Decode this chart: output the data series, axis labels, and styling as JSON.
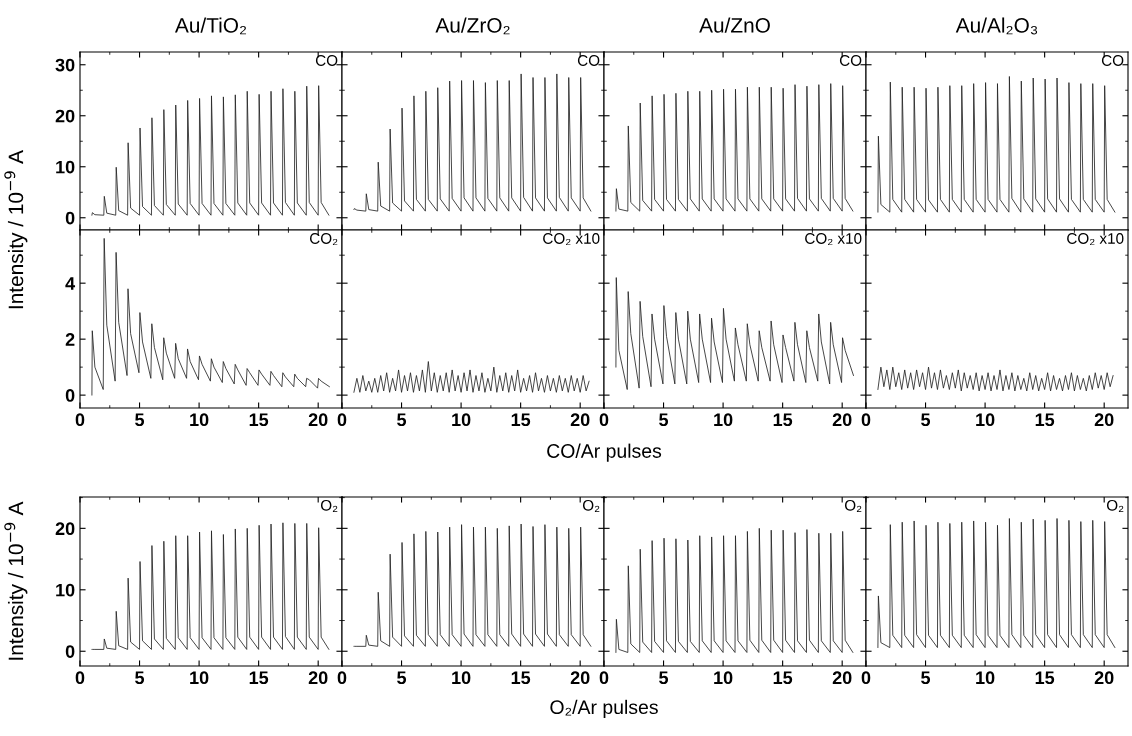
{
  "chart_data": [
    {
      "type": "line",
      "title": "Au/TiO₂",
      "annotations": [
        "CO"
      ],
      "tick_labels": "y",
      "xlim": [
        0,
        22
      ],
      "xticks": [
        0,
        5,
        10,
        15,
        20
      ],
      "ylim": [
        -2.4,
        32.5
      ],
      "yticks": [
        0,
        10,
        20,
        30
      ],
      "x": [
        1,
        1.04,
        1.25,
        2,
        2.04,
        2.25,
        3,
        3.04,
        3.25,
        4,
        4.04,
        4.25,
        5,
        5.04,
        5.25,
        6,
        6.04,
        6.25,
        7,
        7.04,
        7.25,
        8,
        8.04,
        8.25,
        9,
        9.04,
        9.25,
        10,
        10.04,
        10.25,
        11,
        11.04,
        11.25,
        12,
        12.04,
        12.25,
        13,
        13.04,
        13.25,
        14,
        14.04,
        14.25,
        15,
        15.04,
        15.25,
        16,
        16.04,
        16.25,
        17,
        17.04,
        17.25,
        18,
        18.04,
        18.25,
        19,
        19.04,
        19.25,
        20,
        20.04,
        20.25,
        20.9
      ],
      "series": [
        {
          "color": "#222222",
          "values": [
            0.5,
            1.0,
            0.6,
            0.5,
            4.2,
            0.9,
            0.5,
            9.9,
            1.4,
            0.5,
            14.7,
            1.9,
            0.5,
            17.6,
            2.2,
            0.5,
            19.6,
            2.4,
            0.5,
            21.2,
            2.6,
            0.5,
            22.1,
            2.7,
            0.5,
            23,
            2.8,
            0.5,
            23.4,
            2.8,
            0.5,
            23.9,
            2.8,
            0.5,
            23.7,
            2.8,
            0.5,
            24.1,
            2.9,
            0.5,
            24.8,
            2.9,
            0.5,
            24.2,
            2.9,
            0.5,
            24.8,
            2.9,
            0.5,
            25.3,
            3.0,
            0.5,
            24.8,
            2.9,
            0.5,
            25.8,
            3.0,
            0.5,
            25.9,
            3.0,
            0.5
          ]
        }
      ]
    },
    {
      "type": "line",
      "title": "Au/ZrO₂",
      "annotations": [
        "CO"
      ],
      "tick_labels": false,
      "xlim": [
        0,
        22
      ],
      "xticks": [
        0,
        5,
        10,
        15,
        20
      ],
      "ylim": [
        -2.4,
        32.5
      ],
      "yticks": [
        0,
        10,
        20,
        30
      ],
      "x": [
        1,
        1.04,
        1.25,
        2,
        2.04,
        2.25,
        3,
        3.04,
        3.25,
        4,
        4.04,
        4.25,
        5,
        5.04,
        5.25,
        6,
        6.04,
        6.25,
        7,
        7.04,
        7.25,
        8,
        8.04,
        8.25,
        9,
        9.04,
        9.25,
        10,
        10.04,
        10.25,
        11,
        11.04,
        11.25,
        12,
        12.04,
        12.25,
        13,
        13.04,
        13.25,
        14,
        14.04,
        14.25,
        15,
        15.04,
        15.25,
        16,
        16.04,
        16.25,
        17,
        17.04,
        17.25,
        18,
        18.04,
        18.25,
        19,
        19.04,
        19.25,
        20,
        20.04,
        20.25,
        20.9
      ],
      "series": [
        {
          "color": "#222222",
          "values": [
            1.6,
            1.8,
            1.5,
            1.3,
            4.7,
            1.6,
            1.3,
            10.9,
            2.3,
            1.3,
            17.4,
            2.9,
            1.3,
            21.5,
            3.3,
            1.3,
            23.9,
            3.6,
            1.3,
            24.8,
            3.6,
            1.3,
            25.5,
            3.7,
            1.3,
            26.8,
            3.8,
            1.3,
            26.9,
            3.9,
            1.3,
            26.9,
            3.9,
            1.3,
            26.5,
            3.8,
            1.3,
            26.9,
            3.9,
            1.3,
            26.9,
            3.9,
            1.3,
            28.2,
            4.0,
            1.3,
            27.5,
            3.9,
            1.3,
            27.5,
            3.9,
            1.3,
            28.2,
            4.0,
            1.3,
            27.5,
            3.9,
            1.3,
            27.5,
            3.9,
            1.3
          ]
        }
      ]
    },
    {
      "type": "line",
      "title": "Au/ZnO",
      "annotations": [
        "CO"
      ],
      "tick_labels": false,
      "xlim": [
        0,
        22
      ],
      "xticks": [
        0,
        5,
        10,
        15,
        20
      ],
      "ylim": [
        -2.4,
        32.5
      ],
      "yticks": [
        0,
        10,
        20,
        30
      ],
      "x": [
        1,
        1.04,
        1.25,
        2,
        2.04,
        2.25,
        3,
        3.04,
        3.25,
        4,
        4.04,
        4.25,
        5,
        5.04,
        5.25,
        6,
        6.04,
        6.25,
        7,
        7.04,
        7.25,
        8,
        8.04,
        8.25,
        9,
        9.04,
        9.25,
        10,
        10.04,
        10.25,
        11,
        11.04,
        11.25,
        12,
        12.04,
        12.25,
        13,
        13.04,
        13.25,
        14,
        14.04,
        14.25,
        15,
        15.04,
        15.25,
        16,
        16.04,
        16.25,
        17,
        17.04,
        17.25,
        18,
        18.04,
        18.25,
        19,
        19.04,
        19.25,
        20,
        20.04,
        20.25,
        20.9
      ],
      "series": [
        {
          "color": "#222222",
          "values": [
            1.3,
            5.7,
            1.7,
            1.3,
            18,
            3.0,
            1.3,
            22.5,
            3.4,
            1.3,
            23.9,
            3.6,
            1.3,
            24.2,
            3.6,
            1.3,
            24.4,
            3.6,
            1.3,
            24.8,
            3.7,
            1.3,
            24.8,
            3.7,
            1.3,
            25,
            3.7,
            1.3,
            25.2,
            3.7,
            1.3,
            25.2,
            3.7,
            1.3,
            25.6,
            3.7,
            1.3,
            25.6,
            3.7,
            1.3,
            25.6,
            3.7,
            1.3,
            25.4,
            3.7,
            1.3,
            26.1,
            3.8,
            1.3,
            25.8,
            3.7,
            1.3,
            26.1,
            3.8,
            1.3,
            26.3,
            3.8,
            1.3,
            25.9,
            3.8,
            1.3
          ]
        }
      ]
    },
    {
      "type": "line",
      "title": "Au/Al₂O₃",
      "annotations": [
        "CO"
      ],
      "tick_labels": false,
      "xlim": [
        0,
        22
      ],
      "xticks": [
        0,
        5,
        10,
        15,
        20
      ],
      "ylim": [
        -2.4,
        32.5
      ],
      "yticks": [
        0,
        10,
        20,
        30
      ],
      "x": [
        1,
        1.04,
        1.25,
        2,
        2.04,
        2.25,
        3,
        3.04,
        3.25,
        4,
        4.04,
        4.25,
        5,
        5.04,
        5.25,
        6,
        6.04,
        6.25,
        7,
        7.04,
        7.25,
        8,
        8.04,
        8.25,
        9,
        9.04,
        9.25,
        10,
        10.04,
        10.25,
        11,
        11.04,
        11.25,
        12,
        12.04,
        12.25,
        13,
        13.04,
        13.25,
        14,
        14.04,
        14.25,
        15,
        15.04,
        15.25,
        16,
        16.04,
        16.25,
        17,
        17.04,
        17.25,
        18,
        18.04,
        18.25,
        19,
        19.04,
        19.25,
        20,
        20.04,
        20.25,
        20.9
      ],
      "series": [
        {
          "color": "#222222",
          "values": [
            1.1,
            16,
            2.6,
            1.1,
            26.6,
            3.6,
            1.1,
            25.6,
            3.6,
            1.1,
            25.6,
            3.6,
            1.1,
            25.4,
            3.5,
            1.1,
            25.6,
            3.6,
            1.1,
            25.9,
            3.6,
            1.1,
            25.9,
            3.6,
            1.1,
            26.3,
            3.6,
            1.1,
            26.5,
            3.6,
            1.1,
            26.3,
            3.6,
            1.1,
            27.7,
            3.8,
            1.1,
            26.8,
            3.7,
            1.1,
            27.4,
            3.7,
            1.1,
            27.2,
            3.7,
            1.1,
            27.4,
            3.7,
            1.1,
            26.5,
            3.6,
            1.1,
            26.3,
            3.6,
            1.1,
            26.3,
            3.6,
            1.1,
            25.9,
            3.6,
            1.1
          ]
        }
      ]
    },
    {
      "type": "line",
      "annotations": [
        "CO₂"
      ],
      "ylabel": "Intensity / 10$^{−9}$ A",
      "xlim": [
        0,
        22
      ],
      "xticks": [
        0,
        5,
        10,
        15,
        20
      ],
      "ylim": [
        -0.46,
        5.9
      ],
      "yticks": [
        0,
        2,
        4
      ],
      "x": [
        1,
        1.03,
        1.25,
        1.95,
        2.03,
        2.25,
        2.95,
        3.03,
        3.25,
        3.95,
        4.03,
        4.25,
        4.95,
        5.03,
        5.25,
        5.95,
        6.03,
        6.25,
        6.95,
        7.03,
        7.25,
        7.95,
        8.03,
        8.25,
        8.95,
        9.03,
        9.25,
        9.95,
        10.03,
        10.25,
        10.95,
        11.03,
        11.25,
        11.95,
        12.03,
        12.25,
        12.95,
        13.03,
        13.25,
        13.95,
        14.03,
        14.25,
        14.95,
        15.03,
        15.25,
        15.95,
        16.03,
        16.25,
        16.95,
        17.03,
        17.25,
        17.95,
        18.03,
        18.25,
        18.95,
        19.03,
        19.25,
        19.95,
        20.03,
        20.25,
        20.95
      ],
      "series": [
        {
          "color": "#222222",
          "values": [
            0,
            2.3,
            1.0,
            0.2,
            5.6,
            2.5,
            0.5,
            5.1,
            2.6,
            0.7,
            3.8,
            2.2,
            0.8,
            2.95,
            1.9,
            0.6,
            2.55,
            1.7,
            0.55,
            2.05,
            1.5,
            0.6,
            1.85,
            1.3,
            0.6,
            1.65,
            1.2,
            0.55,
            1.4,
            1.1,
            0.5,
            1.3,
            1.0,
            0.45,
            1.2,
            0.95,
            0.4,
            1.1,
            0.9,
            0.35,
            0.95,
            0.8,
            0.35,
            0.9,
            0.75,
            0.35,
            0.85,
            0.7,
            0.3,
            0.8,
            0.65,
            0.3,
            0.75,
            0.6,
            0.3,
            0.6,
            0.55,
            0.25,
            0.6,
            0.5,
            0.3
          ]
        }
      ]
    },
    {
      "type": "line",
      "annotations": [
        "CO₂ x10"
      ],
      "xlabel": "CO/Ar pulses",
      "tick_labels": "x",
      "xlim": [
        0,
        22
      ],
      "xticks": [
        0,
        5,
        10,
        15,
        20
      ],
      "ylim": [
        -0.46,
        5.9
      ],
      "yticks": [
        0,
        2,
        4
      ],
      "x": [
        1,
        1.25,
        1.5,
        1.75,
        2,
        2.25,
        2.5,
        2.75,
        3,
        3.25,
        3.5,
        3.75,
        4,
        4.25,
        4.5,
        4.75,
        5,
        5.25,
        5.5,
        5.75,
        6,
        6.25,
        6.5,
        6.75,
        7,
        7.25,
        7.5,
        7.75,
        8,
        8.25,
        8.5,
        8.75,
        9,
        9.25,
        9.5,
        9.75,
        10,
        10.25,
        10.5,
        10.75,
        11,
        11.25,
        11.5,
        11.75,
        12,
        12.25,
        12.5,
        12.75,
        13,
        13.25,
        13.5,
        13.75,
        14,
        14.25,
        14.5,
        14.75,
        15,
        15.25,
        15.5,
        15.75,
        16,
        16.25,
        16.5,
        16.75,
        17,
        17.25,
        17.5,
        17.75,
        18,
        18.25,
        18.5,
        18.75,
        19,
        19.25,
        19.5,
        19.75,
        20,
        20.25,
        20.5,
        20.75
      ],
      "series": [
        {
          "color": "#222222",
          "values": [
            0.1,
            0.6,
            0.1,
            0.7,
            0.15,
            0.5,
            0.1,
            0.6,
            0.1,
            0.7,
            0.15,
            0.8,
            0.1,
            0.6,
            0.15,
            0.9,
            0.1,
            0.7,
            0.15,
            0.8,
            0.1,
            0.7,
            0.15,
            0.9,
            0.1,
            1.2,
            0.15,
            0.8,
            0.1,
            0.7,
            0.15,
            0.8,
            0.1,
            0.9,
            0.15,
            0.7,
            0.1,
            0.8,
            0.15,
            0.9,
            0.1,
            0.7,
            0.15,
            0.8,
            0.1,
            0.6,
            0.15,
            1.0,
            0.1,
            0.7,
            0.15,
            0.8,
            0.1,
            0.7,
            0.15,
            0.9,
            0.1,
            0.6,
            0.15,
            0.7,
            0.1,
            0.8,
            0.15,
            0.6,
            0.1,
            0.7,
            0.15,
            0.6,
            0.1,
            0.7,
            0.15,
            0.6,
            0.1,
            0.7,
            0.15,
            0.6,
            0.1,
            0.7,
            0.15,
            0.5
          ]
        }
      ]
    },
    {
      "type": "line",
      "annotations": [
        "CO₂ x10"
      ],
      "tick_labels": "x",
      "xlim": [
        0,
        22
      ],
      "xticks": [
        0,
        5,
        10,
        15,
        20
      ],
      "ylim": [
        -0.46,
        5.9
      ],
      "yticks": [
        0,
        2,
        4
      ],
      "x": [
        1,
        1.03,
        1.25,
        1.95,
        2.03,
        2.25,
        2.95,
        3.03,
        3.25,
        3.95,
        4.03,
        4.25,
        4.95,
        5.03,
        5.25,
        5.95,
        6.03,
        6.25,
        6.95,
        7.03,
        7.25,
        7.95,
        8.03,
        8.25,
        8.95,
        9.03,
        9.25,
        9.95,
        10.03,
        10.25,
        10.95,
        11.03,
        11.25,
        11.95,
        12.03,
        12.25,
        12.95,
        13.03,
        13.25,
        13.95,
        14.03,
        14.25,
        14.95,
        15.03,
        15.25,
        15.95,
        16.03,
        16.25,
        16.95,
        17.03,
        17.25,
        17.95,
        18.03,
        18.25,
        18.95,
        19.03,
        19.25,
        19.95,
        20.03,
        20.25,
        20.95
      ],
      "series": [
        {
          "color": "#222222",
          "values": [
            1.0,
            4.2,
            1.6,
            0.2,
            3.7,
            2.2,
            0.25,
            3.35,
            2.1,
            0.3,
            2.9,
            2.0,
            0.4,
            3.2,
            2.1,
            0.4,
            2.95,
            2.0,
            0.4,
            3.0,
            2.0,
            0.45,
            2.9,
            2.0,
            0.45,
            2.75,
            1.9,
            0.45,
            3.1,
            2.0,
            0.5,
            2.4,
            1.8,
            0.5,
            2.55,
            1.8,
            0.5,
            2.3,
            1.7,
            0.5,
            2.65,
            1.8,
            0.45,
            2.15,
            1.7,
            0.5,
            2.6,
            1.8,
            0.45,
            2.3,
            1.7,
            0.5,
            2.9,
            1.9,
            0.4,
            2.6,
            1.8,
            0.45,
            2.05,
            1.6,
            0.7
          ]
        }
      ]
    },
    {
      "type": "line",
      "annotations": [
        "CO₂ x10"
      ],
      "tick_labels": "x",
      "xlim": [
        0,
        22
      ],
      "xticks": [
        0,
        5,
        10,
        15,
        20
      ],
      "ylim": [
        -0.46,
        5.9
      ],
      "yticks": [
        0,
        2,
        4
      ],
      "x": [
        1,
        1.25,
        1.5,
        1.75,
        2,
        2.25,
        2.5,
        2.75,
        3,
        3.25,
        3.5,
        3.75,
        4,
        4.25,
        4.5,
        4.75,
        5,
        5.25,
        5.5,
        5.75,
        6,
        6.25,
        6.5,
        6.75,
        7,
        7.25,
        7.5,
        7.75,
        8,
        8.25,
        8.5,
        8.75,
        9,
        9.25,
        9.5,
        9.75,
        10,
        10.25,
        10.5,
        10.75,
        11,
        11.25,
        11.5,
        11.75,
        12,
        12.25,
        12.5,
        12.75,
        13,
        13.25,
        13.5,
        13.75,
        14,
        14.25,
        14.5,
        14.75,
        15,
        15.25,
        15.5,
        15.75,
        16,
        16.25,
        16.5,
        16.75,
        17,
        17.25,
        17.5,
        17.75,
        18,
        18.25,
        18.5,
        18.75,
        19,
        19.25,
        19.5,
        19.75,
        20,
        20.25,
        20.5,
        20.75
      ],
      "series": [
        {
          "color": "#222222",
          "values": [
            0.2,
            1.0,
            0.3,
            0.9,
            0.2,
            1.0,
            0.3,
            0.8,
            0.2,
            0.9,
            0.25,
            0.8,
            0.2,
            0.9,
            0.3,
            0.8,
            0.2,
            1.0,
            0.25,
            0.8,
            0.2,
            0.9,
            0.25,
            0.7,
            0.2,
            0.8,
            0.25,
            0.9,
            0.15,
            0.8,
            0.25,
            0.7,
            0.2,
            0.8,
            0.15,
            0.7,
            0.2,
            0.8,
            0.15,
            0.7,
            0.2,
            0.9,
            0.15,
            0.7,
            0.2,
            0.8,
            0.15,
            0.7,
            0.2,
            0.6,
            0.15,
            0.8,
            0.2,
            0.7,
            0.15,
            0.6,
            0.2,
            0.8,
            0.15,
            0.7,
            0.2,
            0.6,
            0.15,
            0.7,
            0.2,
            0.8,
            0.15,
            0.7,
            0.2,
            0.6,
            0.15,
            0.7,
            0.2,
            0.8,
            0.25,
            0.7,
            0.2,
            0.8,
            0.3,
            0.7
          ]
        }
      ]
    },
    {
      "type": "line",
      "annotations": [
        "O₂"
      ],
      "ylabel": "Intensity / 10$^{−9}$ A",
      "xlim": [
        0,
        22
      ],
      "xticks": [
        0,
        5,
        10,
        15,
        20
      ],
      "ylim": [
        -2.4,
        25.1
      ],
      "yticks": [
        0,
        10,
        20
      ],
      "x": [
        1,
        1.04,
        1.25,
        2,
        2.04,
        2.25,
        3,
        3.04,
        3.25,
        4,
        4.04,
        4.25,
        5,
        5.04,
        5.25,
        6,
        6.04,
        6.25,
        7,
        7.04,
        7.25,
        8,
        8.04,
        8.25,
        9,
        9.04,
        9.25,
        10,
        10.04,
        10.25,
        11,
        11.04,
        11.25,
        12,
        12.04,
        12.25,
        13,
        13.04,
        13.25,
        14,
        14.04,
        14.25,
        15,
        15.04,
        15.25,
        16,
        16.04,
        16.25,
        17,
        17.04,
        17.25,
        18,
        18.04,
        18.25,
        19,
        19.04,
        19.25,
        20,
        20.04,
        20.25,
        20.9
      ],
      "series": [
        {
          "color": "#222222",
          "values": [
            0.3,
            0.3,
            0.3,
            0.3,
            2,
            0.5,
            0.3,
            6.5,
            0.9,
            0.3,
            11.9,
            1.5,
            0.3,
            14.6,
            1.7,
            0.3,
            17.2,
            2.0,
            0.3,
            17.9,
            2.1,
            0.3,
            18.8,
            2.2,
            0.3,
            18.8,
            2.2,
            0.3,
            19.4,
            2.2,
            0.3,
            19.6,
            2.2,
            0.3,
            19,
            2.2,
            0.3,
            19.9,
            2.3,
            0.3,
            20,
            2.3,
            0.3,
            20.5,
            2.3,
            0.3,
            20.7,
            2.3,
            0.3,
            20.9,
            2.4,
            0.3,
            20.8,
            2.3,
            0.3,
            20.8,
            2.3,
            0.3,
            20.1,
            2.3,
            0.3
          ]
        }
      ]
    },
    {
      "type": "line",
      "annotations": [
        "O₂"
      ],
      "xlabel": "O₂/Ar pulses",
      "tick_labels": "x",
      "xlim": [
        0,
        22
      ],
      "xticks": [
        0,
        5,
        10,
        15,
        20
      ],
      "ylim": [
        -2.4,
        25.1
      ],
      "yticks": [
        0,
        10,
        20
      ],
      "x": [
        1,
        1.04,
        1.25,
        2,
        2.04,
        2.25,
        3,
        3.04,
        3.25,
        4,
        4.04,
        4.25,
        5,
        5.04,
        5.25,
        6,
        6.04,
        6.25,
        7,
        7.04,
        7.25,
        8,
        8.04,
        8.25,
        9,
        9.04,
        9.25,
        10,
        10.04,
        10.25,
        11,
        11.04,
        11.25,
        12,
        12.04,
        12.25,
        13,
        13.04,
        13.25,
        14,
        14.04,
        14.25,
        15,
        15.04,
        15.25,
        16,
        16.04,
        16.25,
        17,
        17.04,
        17.25,
        18,
        18.04,
        18.25,
        19,
        19.04,
        19.25,
        20,
        20.04,
        20.25,
        20.9
      ],
      "series": [
        {
          "color": "#222222",
          "values": [
            0.8,
            0.8,
            0.8,
            0.8,
            2.6,
            1.0,
            0.8,
            9.6,
            1.7,
            0.8,
            15.8,
            2.3,
            0.8,
            17.7,
            2.5,
            0.8,
            19.1,
            2.6,
            0.8,
            19.5,
            2.7,
            0.8,
            19.4,
            2.7,
            0.8,
            20.2,
            2.7,
            0.8,
            20.6,
            2.8,
            0.8,
            20.2,
            2.7,
            0.8,
            20.2,
            2.7,
            0.8,
            20,
            2.7,
            0.8,
            20.4,
            2.8,
            0.8,
            20.7,
            2.8,
            0.8,
            20.3,
            2.8,
            0.8,
            20.6,
            2.8,
            0.8,
            20.2,
            2.7,
            0.8,
            20,
            2.7,
            0.8,
            20.2,
            2.7,
            0.8
          ]
        }
      ]
    },
    {
      "type": "line",
      "annotations": [
        "O₂"
      ],
      "tick_labels": "x",
      "xlim": [
        0,
        22
      ],
      "xticks": [
        0,
        5,
        10,
        15,
        20
      ],
      "ylim": [
        -2.4,
        25.1
      ],
      "yticks": [
        0,
        10,
        20
      ],
      "x": [
        1,
        1.04,
        1.25,
        2,
        2.04,
        2.25,
        3,
        3.04,
        3.25,
        4,
        4.04,
        4.25,
        5,
        5.04,
        5.25,
        6,
        6.04,
        6.25,
        7,
        7.04,
        7.25,
        8,
        8.04,
        8.25,
        9,
        9.04,
        9.25,
        10,
        10.04,
        10.25,
        11,
        11.04,
        11.25,
        12,
        12.04,
        12.25,
        13,
        13.04,
        13.25,
        14,
        14.04,
        14.25,
        15,
        15.04,
        15.25,
        16,
        16.04,
        16.25,
        17,
        17.04,
        17.25,
        18,
        18.04,
        18.25,
        19,
        19.04,
        19.25,
        20,
        20.04,
        20.25,
        20.9
      ],
      "series": [
        {
          "color": "#222222",
          "values": [
            -0.2,
            5.2,
            0.3,
            -0.2,
            13.9,
            1.2,
            -0.2,
            16.6,
            1.5,
            -0.2,
            18,
            1.6,
            -0.2,
            18.4,
            1.7,
            -0.2,
            18.3,
            1.6,
            -0.2,
            18.1,
            1.6,
            -0.2,
            18.8,
            1.7,
            -0.2,
            18.6,
            1.7,
            -0.2,
            18.8,
            1.7,
            -0.2,
            18.8,
            1.7,
            -0.2,
            19.5,
            1.8,
            -0.2,
            20,
            1.8,
            -0.2,
            19.7,
            1.8,
            -0.2,
            19.7,
            1.8,
            -0.2,
            19.3,
            1.7,
            -0.2,
            19.8,
            1.8,
            -0.2,
            19.2,
            1.7,
            -0.2,
            19.2,
            1.7,
            -0.2,
            19.5,
            1.8,
            -0.2
          ]
        }
      ]
    },
    {
      "type": "line",
      "annotations": [
        "O₂"
      ],
      "tick_labels": "x",
      "xlim": [
        0,
        22
      ],
      "xticks": [
        0,
        5,
        10,
        15,
        20
      ],
      "ylim": [
        -2.4,
        25.1
      ],
      "yticks": [
        0,
        10,
        20
      ],
      "x": [
        1,
        1.04,
        1.25,
        2,
        2.04,
        2.25,
        3,
        3.04,
        3.25,
        4,
        4.04,
        4.25,
        5,
        5.04,
        5.25,
        6,
        6.04,
        6.25,
        7,
        7.04,
        7.25,
        8,
        8.04,
        8.25,
        9,
        9.04,
        9.25,
        10,
        10.04,
        10.25,
        11,
        11.04,
        11.25,
        12,
        12.04,
        12.25,
        13,
        13.04,
        13.25,
        14,
        14.04,
        14.25,
        15,
        15.04,
        15.25,
        16,
        16.04,
        16.25,
        17,
        17.04,
        17.25,
        18,
        18.04,
        18.25,
        19,
        19.04,
        19.25,
        20,
        20.04,
        20.25,
        20.9
      ],
      "series": [
        {
          "color": "#222222",
          "values": [
            0.6,
            9,
            1.4,
            0.6,
            20.6,
            2.6,
            0.6,
            21,
            2.6,
            0.6,
            21.2,
            2.7,
            0.6,
            20.5,
            2.6,
            0.6,
            21,
            2.6,
            0.6,
            20.8,
            2.6,
            0.6,
            21,
            2.6,
            0.6,
            21.2,
            2.7,
            0.6,
            21,
            2.6,
            0.6,
            20.5,
            2.6,
            0.6,
            21.6,
            2.7,
            0.6,
            21,
            2.6,
            0.6,
            21.5,
            2.7,
            0.6,
            21.3,
            2.7,
            0.6,
            21.6,
            2.7,
            0.6,
            21.3,
            2.7,
            0.6,
            21.1,
            2.7,
            0.6,
            21.3,
            2.7,
            0.6,
            21.1,
            2.7,
            0.6
          ]
        }
      ]
    }
  ]
}
